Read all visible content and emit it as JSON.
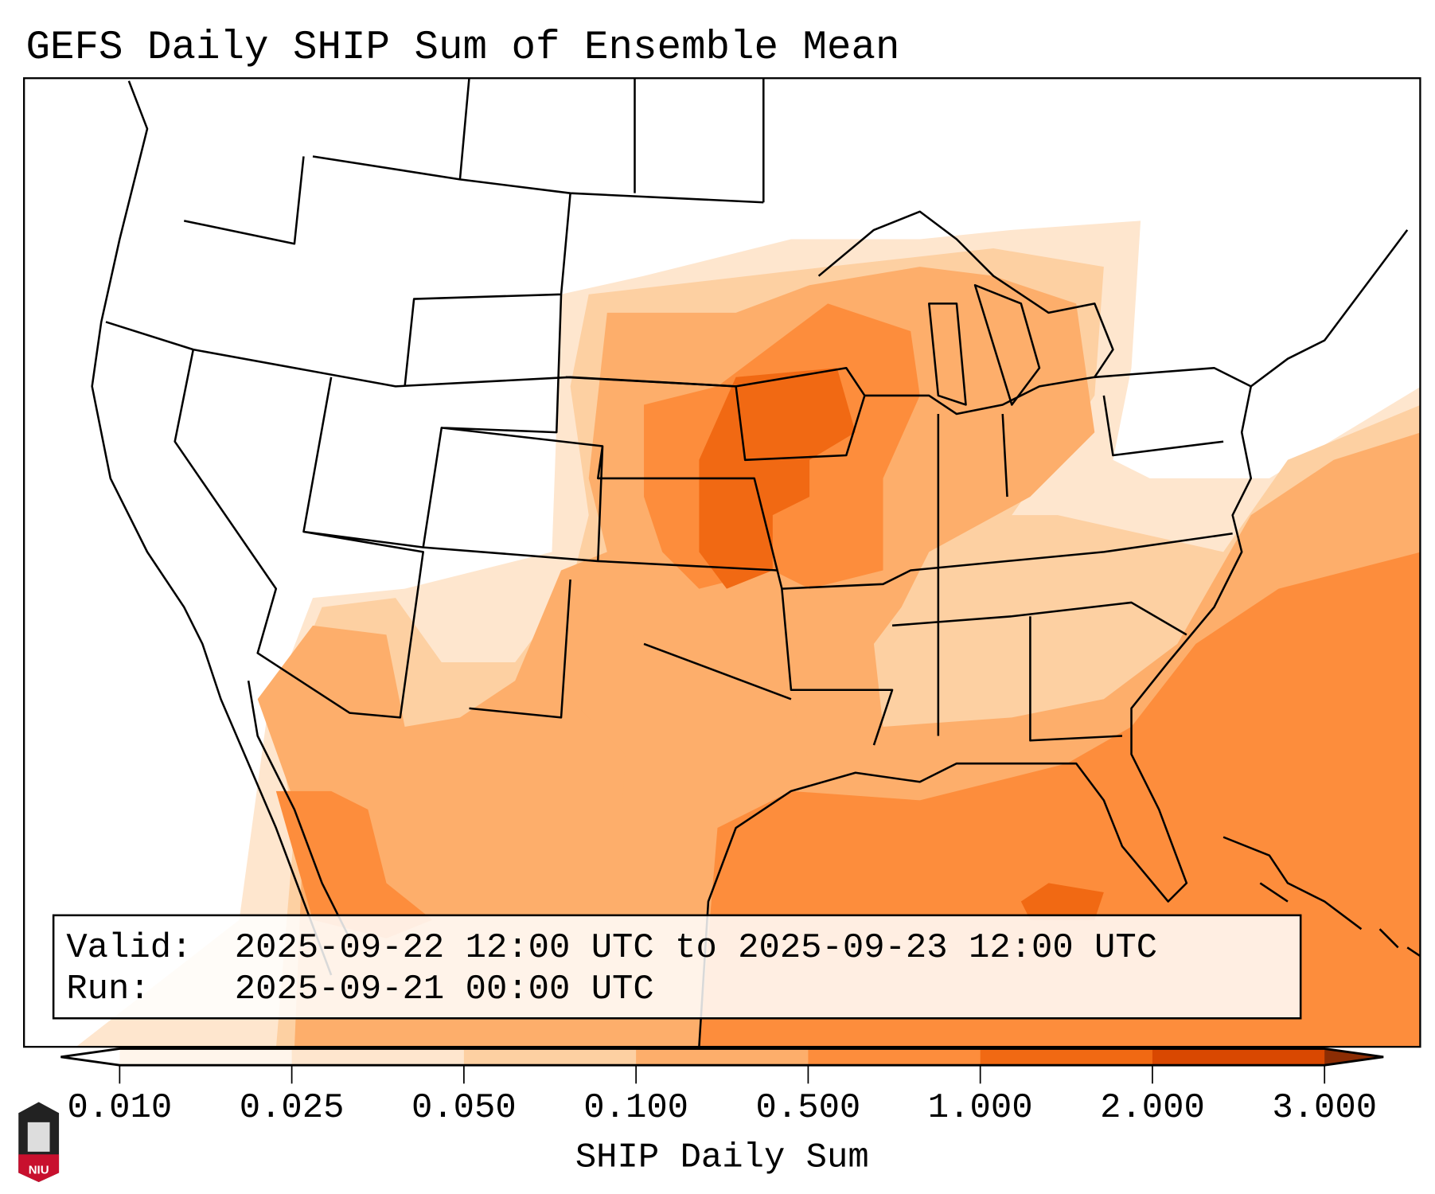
{
  "title": "GEFS Daily SHIP Sum of Ensemble Mean",
  "info_box": {
    "valid_label": "Valid:",
    "valid_value": "2025-09-22 12:00 UTC to 2025-09-23 12:00 UTC",
    "run_label": "Run:",
    "run_value": "2025-09-21 00:00 UTC"
  },
  "colorbar": {
    "label": "SHIP Daily Sum",
    "ticks": [
      "0.010",
      "0.025",
      "0.050",
      "0.100",
      "0.500",
      "1.000",
      "2.000",
      "3.000"
    ],
    "colors": [
      "#fff5eb",
      "#fee6ce",
      "#fdd0a2",
      "#fdae6b",
      "#fd8d3c",
      "#f16913",
      "#d94801"
    ],
    "over_color": "#8c2d04",
    "under_color": "#ffffff"
  },
  "logo": {
    "text": "NIU"
  }
}
